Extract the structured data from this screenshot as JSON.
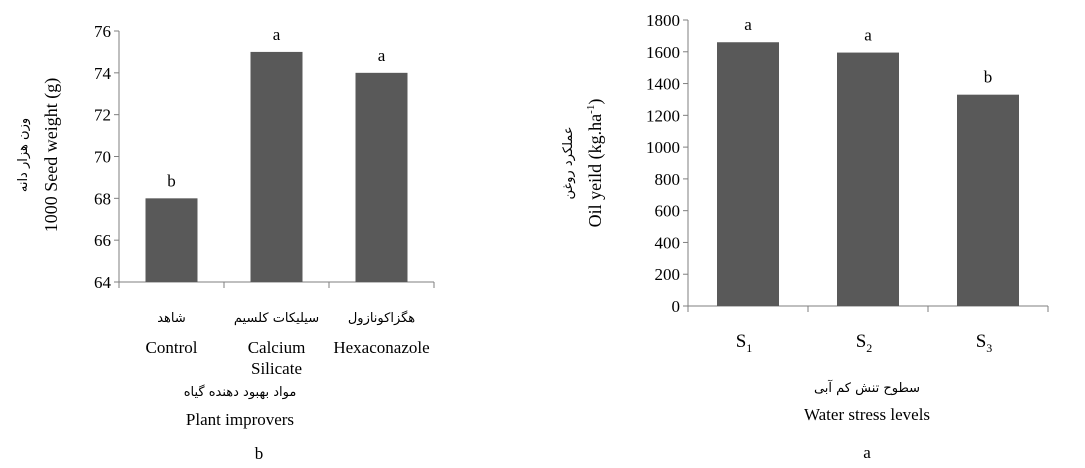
{
  "chart_data": [
    {
      "type": "bar",
      "categories": [
        "Control",
        "Calcium Silicate",
        "Hexaconazole"
      ],
      "category_lines": [
        {
          "fa": "شاهد",
          "en": [
            "Control"
          ]
        },
        {
          "fa": "سیلیکات کلسیم",
          "en": [
            "Calcium",
            "Silicate"
          ]
        },
        {
          "fa": "هگزاکونازول",
          "en": [
            "Hexaconazole"
          ]
        }
      ],
      "values": [
        68,
        75,
        74
      ],
      "letters": [
        "b",
        "a",
        "a"
      ],
      "ylim": [
        64,
        76
      ],
      "yticks": [
        64,
        66,
        68,
        70,
        72,
        74,
        76
      ],
      "ylabel_fa": "وزن هزار دانه",
      "ylabel": "1000 Seed weight (g)",
      "xlabel_fa": "مواد بهبود دهنده گیاه",
      "xlabel": "Plant  improvers",
      "panel_label": "b",
      "bar_color": "#595959"
    },
    {
      "type": "bar",
      "categories": [
        "S1",
        "S2",
        "S3"
      ],
      "category_parts": [
        [
          "S",
          "1"
        ],
        [
          "S",
          "2"
        ],
        [
          "S",
          "3"
        ]
      ],
      "values": [
        1660,
        1595,
        1330
      ],
      "letters": [
        "a",
        "a",
        "b"
      ],
      "ylim": [
        0,
        1800
      ],
      "yticks": [
        0,
        200,
        400,
        600,
        800,
        1000,
        1200,
        1400,
        1600,
        1800
      ],
      "ylabel_fa": "عملکرد روغن",
      "ylabel_main": "Oil yeild (kg.ha",
      "ylabel_sup": "-1",
      "ylabel_end": ")",
      "xlabel_fa": "سطوح تنش کم آبی",
      "xlabel": "Water stress levels",
      "panel_label": "a",
      "bar_color": "#595959"
    }
  ]
}
